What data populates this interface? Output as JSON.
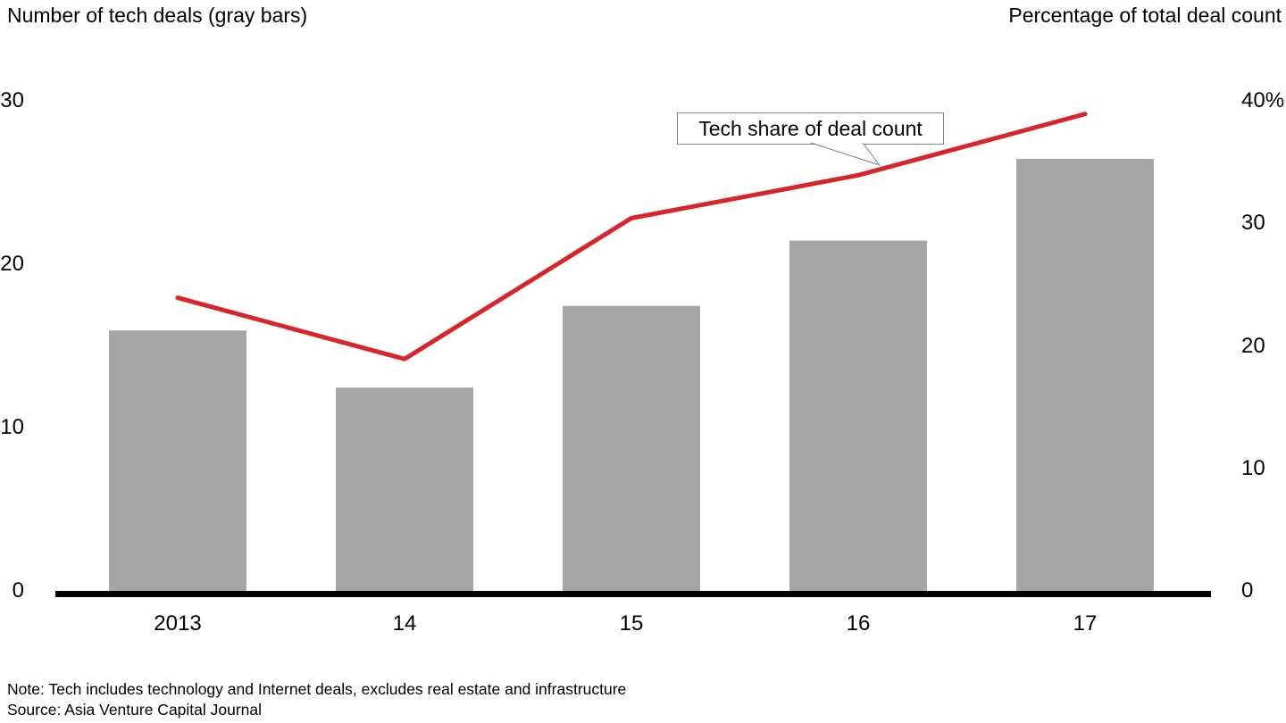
{
  "header": {
    "left_axis_title": "Number of tech deals (gray bars)",
    "right_axis_title": "Percentage of total deal count"
  },
  "chart_data": {
    "type": "bar",
    "categories": [
      "2013",
      "14",
      "15",
      "16",
      "17"
    ],
    "series": [
      {
        "name": "Number of tech deals",
        "type": "bar",
        "axis": "left",
        "color": "#a6a6a6",
        "values": [
          16,
          12.5,
          17.5,
          21.5,
          26.5
        ]
      },
      {
        "name": "Tech share of deal count",
        "type": "line",
        "axis": "right",
        "color": "#d8252c",
        "values": [
          24,
          19,
          30.5,
          34,
          39
        ]
      }
    ],
    "left_axis": {
      "title": "Number of tech deals (gray bars)",
      "range": [
        0,
        30
      ],
      "ticks": [
        "30",
        "20",
        "10",
        "0"
      ]
    },
    "right_axis": {
      "title": "Percentage of total deal count",
      "range": [
        0,
        40
      ],
      "ticks": [
        "40%",
        "30",
        "20",
        "10",
        "0"
      ]
    },
    "annotation": "Tech share of deal count",
    "legend_position": "callout",
    "grid": false
  },
  "footer": {
    "note": "Note: Tech includes technology and Internet deals, excludes real estate and infrastructure",
    "source": "Source: Asia Venture Capital Journal"
  }
}
